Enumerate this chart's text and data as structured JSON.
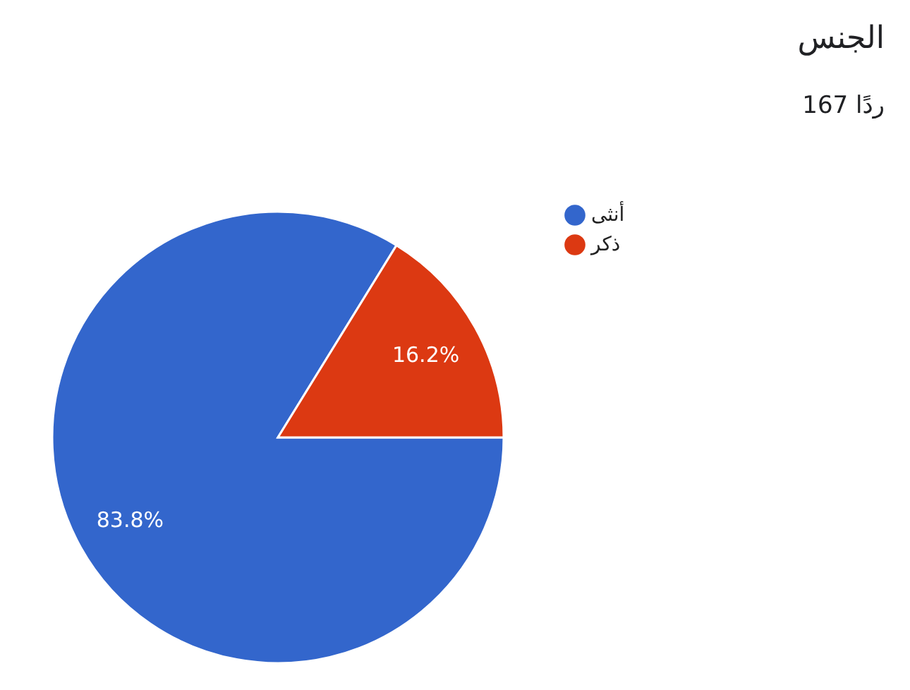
{
  "chart_data": {
    "type": "pie",
    "title": "الجنس",
    "subtitle": "167 ردًا",
    "categories": [
      "أنثى",
      "ذكر"
    ],
    "values": [
      83.8,
      16.2
    ],
    "colors": [
      "#3366cc",
      "#dc3912"
    ],
    "value_labels": [
      "83.8%",
      "16.2%"
    ],
    "legend": "top right"
  }
}
